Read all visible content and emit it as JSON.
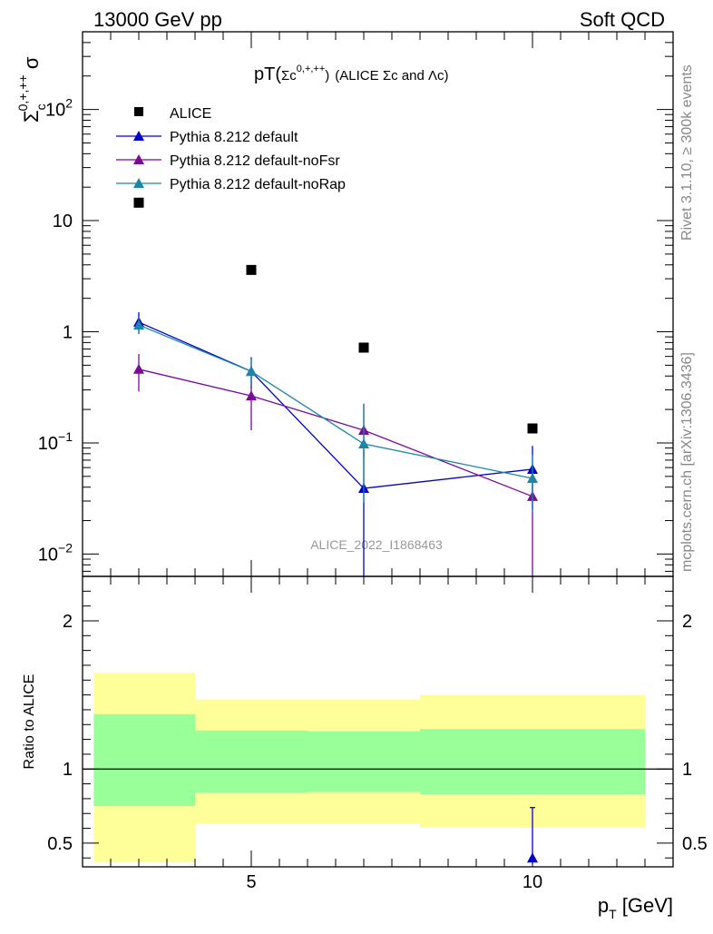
{
  "header": {
    "energy_label": "13000 GeV pp",
    "category_label": "Soft QCD"
  },
  "side_labels": {
    "rivet": "Rivet 3.1.10, ≥ 300k events",
    "mcplots": "mcplots.cern.ch [arXiv:1306.3436]"
  },
  "chart_data": [
    {
      "type": "scatter",
      "title_parts": {
        "main": "pT(",
        "sigma": "Σc",
        "charge": "0,+,++",
        "close": ")",
        "rest_a": "(ALICE ",
        "rest_sigma": "Σc",
        "rest_and": " and ",
        "rest_lambda": "Λc",
        "rest_close": ")"
      },
      "ylabel_parts": {
        "sigma_symbol": "Σ",
        "sub": "c",
        "sup": "0,+,++",
        "tail": " σ"
      },
      "watermark": "ALICE_2022_I1868463",
      "y_scale": "log",
      "xlim": [
        2,
        12.5
      ],
      "ylim": [
        0.0063,
        500
      ],
      "y_ticks": [
        {
          "value": 100,
          "base": "10",
          "exp": "2"
        },
        {
          "value": 10,
          "base": "10",
          "exp": ""
        },
        {
          "value": 1,
          "base": "1",
          "exp": ""
        },
        {
          "value": 0.1,
          "base": "10",
          "exp": "−1"
        },
        {
          "value": 0.01,
          "base": "10",
          "exp": "−2"
        }
      ],
      "legend_position": "top-left",
      "series": [
        {
          "name": "ALICE",
          "marker": "square",
          "color": "#000000",
          "x": [
            3,
            5,
            7,
            10
          ],
          "y": [
            14.5,
            3.6,
            0.72,
            0.135
          ],
          "y_err_low": [
            0,
            0,
            0,
            0
          ],
          "y_err_high": [
            0,
            0,
            0,
            0
          ]
        },
        {
          "name": "Pythia 8.212 default",
          "marker": "triangle",
          "color": "#0000cc",
          "x": [
            3,
            5,
            7,
            10
          ],
          "y": [
            1.22,
            0.44,
            0.039,
            0.058
          ],
          "y_err_low": [
            0.26,
            0.13,
            0.039,
            0.033
          ],
          "y_err_high": [
            0.28,
            0.15,
            0.046,
            0.036
          ]
        },
        {
          "name": "Pythia 8.212 default-noFsr",
          "marker": "triangle",
          "color": "#7a0a99",
          "x": [
            3,
            5,
            7,
            10
          ],
          "y": [
            0.46,
            0.265,
            0.13,
            0.033
          ],
          "y_err_low": [
            0.17,
            0.135,
            0.055,
            0.033
          ],
          "y_err_high": [
            0.17,
            0.135,
            0.095,
            0.028
          ]
        },
        {
          "name": "Pythia 8.212 default-noRap",
          "marker": "triangle",
          "color": "#1a87a8",
          "x": [
            3,
            5,
            7,
            10
          ],
          "y": [
            1.15,
            0.44,
            0.098,
            0.048
          ],
          "y_err_low": [
            0.2,
            0.12,
            0.069,
            0.024
          ],
          "y_err_high": [
            0.2,
            0.13,
            0.12,
            0.03
          ]
        }
      ]
    },
    {
      "type": "scatter",
      "ylabel": "Ratio to ALICE",
      "xlabel_parts": {
        "p": "p",
        "sub": "T",
        "rest": " [GeV]"
      },
      "xlim": [
        2,
        12.5
      ],
      "ylim": [
        0.34,
        2.3
      ],
      "x_ticks": [
        5,
        10
      ],
      "y_ticks": [
        0.5,
        1,
        2
      ],
      "bands": [
        {
          "x0": 2.2,
          "x1": 4,
          "inner": [
            0.75,
            1.37
          ],
          "outer": [
            0.37,
            1.65
          ]
        },
        {
          "x0": 4,
          "x1": 6,
          "inner": [
            0.84,
            1.26
          ],
          "outer": [
            0.63,
            1.47
          ]
        },
        {
          "x0": 6,
          "x1": 8,
          "inner": [
            0.845,
            1.255
          ],
          "outer": [
            0.63,
            1.47
          ]
        },
        {
          "x0": 8,
          "x1": 12.0,
          "inner": [
            0.83,
            1.27
          ],
          "outer": [
            0.605,
            1.5
          ]
        }
      ],
      "band_colors": {
        "outer": "#ffff99",
        "inner": "#99ff99"
      },
      "reference_line": 1,
      "series": [
        {
          "name": "Pythia 8.212 default",
          "color": "#0000cc",
          "x": [
            10
          ],
          "y": [
            0.4
          ],
          "y_err_low": [
            0.04
          ],
          "y_err_high": [
            0.34
          ]
        }
      ]
    }
  ]
}
